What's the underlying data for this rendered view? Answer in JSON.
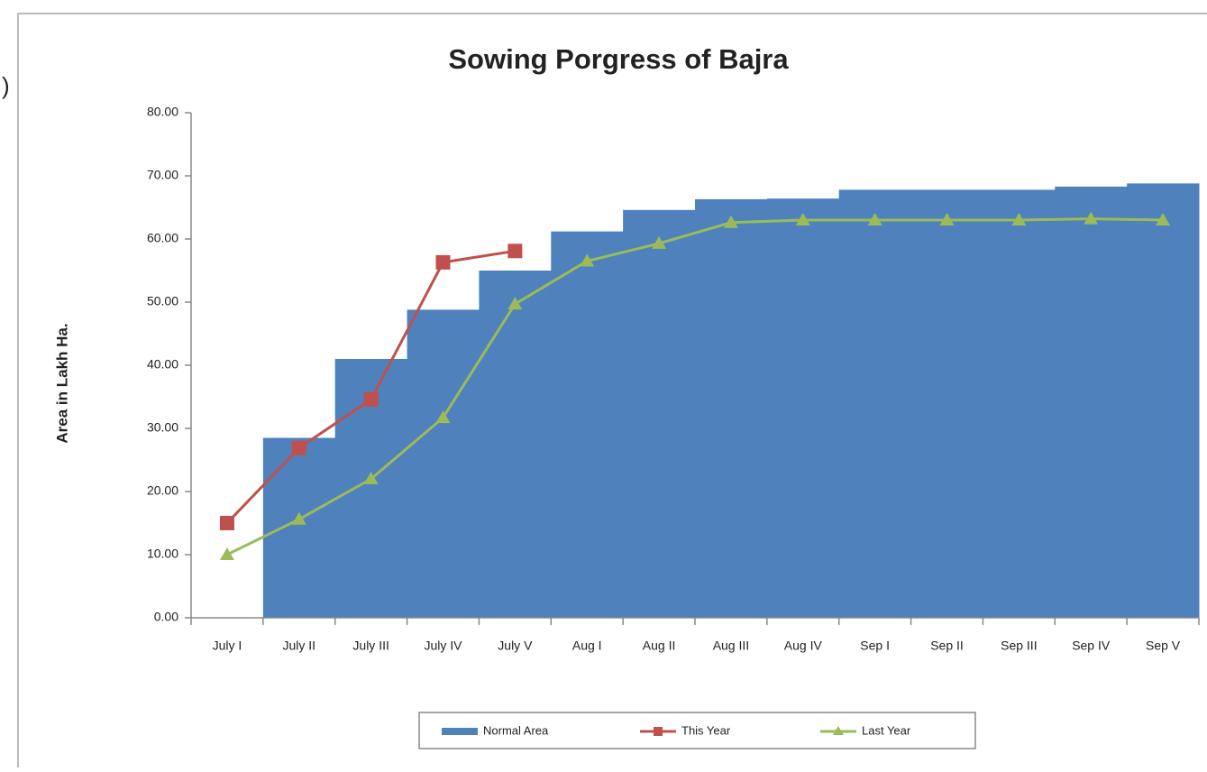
{
  "fragment": ")",
  "chart_data": {
    "type": "bar",
    "title": "Sowing Porgress of Bajra",
    "y_label": "Area in Lakh Ha.",
    "categories": [
      "July I",
      "July II",
      "July III",
      "July IV",
      "July V",
      "Aug I",
      "Aug II",
      "Aug III",
      "Aug IV",
      "Sep I",
      "Sep II",
      "Sep III",
      "Sep IV",
      "Sep V"
    ],
    "series": [
      {
        "name": "Normal Area",
        "type": "bar",
        "color": "#4f81bd",
        "values": [
          0,
          28.5,
          41,
          48.8,
          55,
          61.2,
          64.6,
          66.3,
          66.4,
          67.8,
          67.8,
          67.8,
          68.3,
          68.8
        ]
      },
      {
        "name": "This Year",
        "type": "line",
        "marker": "square",
        "color": "#c0504d",
        "values": [
          15,
          26.9,
          34.6,
          56.3,
          58.1,
          null,
          null,
          null,
          null,
          null,
          null,
          null,
          null,
          null
        ]
      },
      {
        "name": "Last Year",
        "type": "line",
        "marker": "triangle",
        "color": "#9bbb59",
        "values": [
          10,
          15.6,
          22,
          31.7,
          49.7,
          56.5,
          59.3,
          62.6,
          63,
          63,
          63,
          63,
          63.2,
          63
        ]
      }
    ],
    "ylim": [
      0,
      80
    ],
    "yticks": [
      {
        "value": 0,
        "label": "0.00"
      },
      {
        "value": 10,
        "label": "10.00"
      },
      {
        "value": 20,
        "label": "20.00"
      },
      {
        "value": 30,
        "label": "30.00"
      },
      {
        "value": 40,
        "label": "40.00"
      },
      {
        "value": 50,
        "label": "50.00"
      },
      {
        "value": 60,
        "label": "60.00"
      },
      {
        "value": 70,
        "label": "70.00"
      },
      {
        "value": 80,
        "label": "80.00"
      }
    ],
    "grid": false,
    "legend": "bottom"
  }
}
